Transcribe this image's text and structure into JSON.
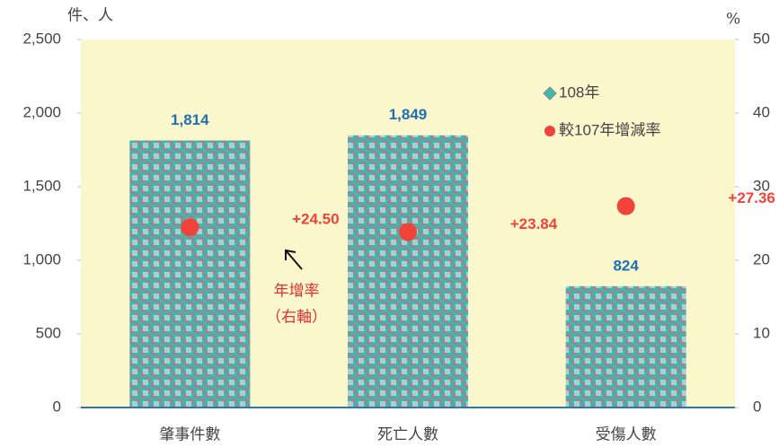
{
  "chart_data": {
    "type": "bar",
    "y_axis_label": "件、人",
    "y2_axis_label": "%",
    "categories": [
      "肇事件數",
      "死亡人數",
      "受傷人數"
    ],
    "series": [
      {
        "name": "108年",
        "type": "bar",
        "color": "#3fb8b0",
        "values": [
          1814,
          1849,
          824
        ],
        "value_labels": [
          "1,814",
          "1,849",
          "824"
        ]
      },
      {
        "name": "較107年增減率",
        "type": "scatter",
        "axis": "y2",
        "color": "#f0443a",
        "values": [
          24.5,
          23.84,
          27.36
        ],
        "value_labels": [
          "+24.50",
          "+23.84",
          "+27.36"
        ]
      }
    ],
    "ylim": [
      0,
      2500
    ],
    "yticks": [
      0,
      500,
      {
        "value": 1000,
        "label": "1,000"
      },
      {
        "value": 1500,
        "label": "1,500"
      },
      {
        "value": 2000,
        "label": "2,000"
      },
      {
        "value": 2500,
        "label": "2,500"
      }
    ],
    "y2lim": [
      0,
      50
    ],
    "y2ticks": [
      0,
      10,
      20,
      30,
      40,
      50
    ],
    "annotation": [
      "年增率",
      "（右軸）"
    ],
    "legend": "top-right"
  }
}
